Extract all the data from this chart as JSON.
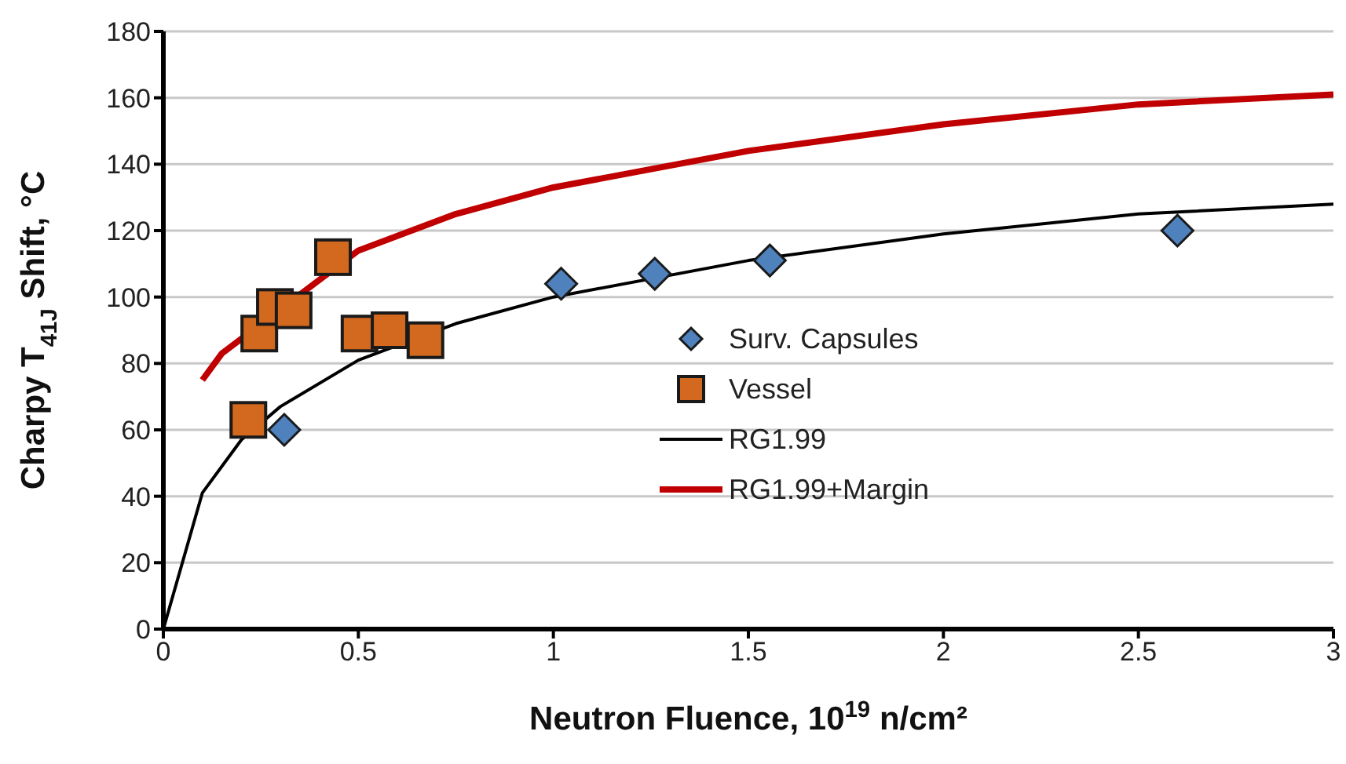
{
  "chart_data": {
    "type": "scatter",
    "xlabel": "Neutron Fluence, 10$^{19}$ n/cm²",
    "ylabel": "Charpy T$_{41J}$ Shift, °C",
    "xlim": [
      0,
      3
    ],
    "xticks": [
      0,
      0.5,
      1,
      1.5,
      2,
      2.5,
      3
    ],
    "ylim": [
      0,
      180
    ],
    "yticks": [
      0,
      20,
      40,
      60,
      80,
      100,
      120,
      140,
      160,
      180
    ],
    "grid": "y",
    "legend": "right",
    "series": [
      {
        "name": "Surv. Capsules",
        "marker": "diamond",
        "color": "#4f81bd",
        "x": [
          0.31,
          1.02,
          1.26,
          1.555,
          2.6
        ],
        "values": [
          60,
          104,
          107,
          111,
          120
        ]
      },
      {
        "name": "Vessel",
        "marker": "square",
        "color": "#d2691e",
        "x": [
          0.218,
          0.246,
          0.286,
          0.334,
          0.435,
          0.503,
          0.58,
          0.672
        ],
        "values": [
          63,
          89,
          97,
          96,
          112,
          89,
          90,
          87
        ]
      },
      {
        "name": "RG1.99",
        "type": "line",
        "marker": "none",
        "color": "#000000",
        "x": [
          0,
          0.1,
          0.2,
          0.3,
          0.5,
          0.75,
          1,
          1.5,
          2,
          2.5,
          3
        ],
        "values": [
          0,
          41,
          57,
          67,
          81,
          92,
          100,
          111,
          119,
          125,
          128
        ]
      },
      {
        "name": "RG1.99+Margin",
        "type": "line",
        "marker": "none",
        "color": "#c00000",
        "x": [
          0.1,
          0.15,
          0.5,
          0.75,
          1,
          1.5,
          2,
          2.5,
          3
        ],
        "values": [
          75,
          83,
          114,
          125,
          133,
          144,
          152,
          158,
          161
        ]
      }
    ]
  }
}
